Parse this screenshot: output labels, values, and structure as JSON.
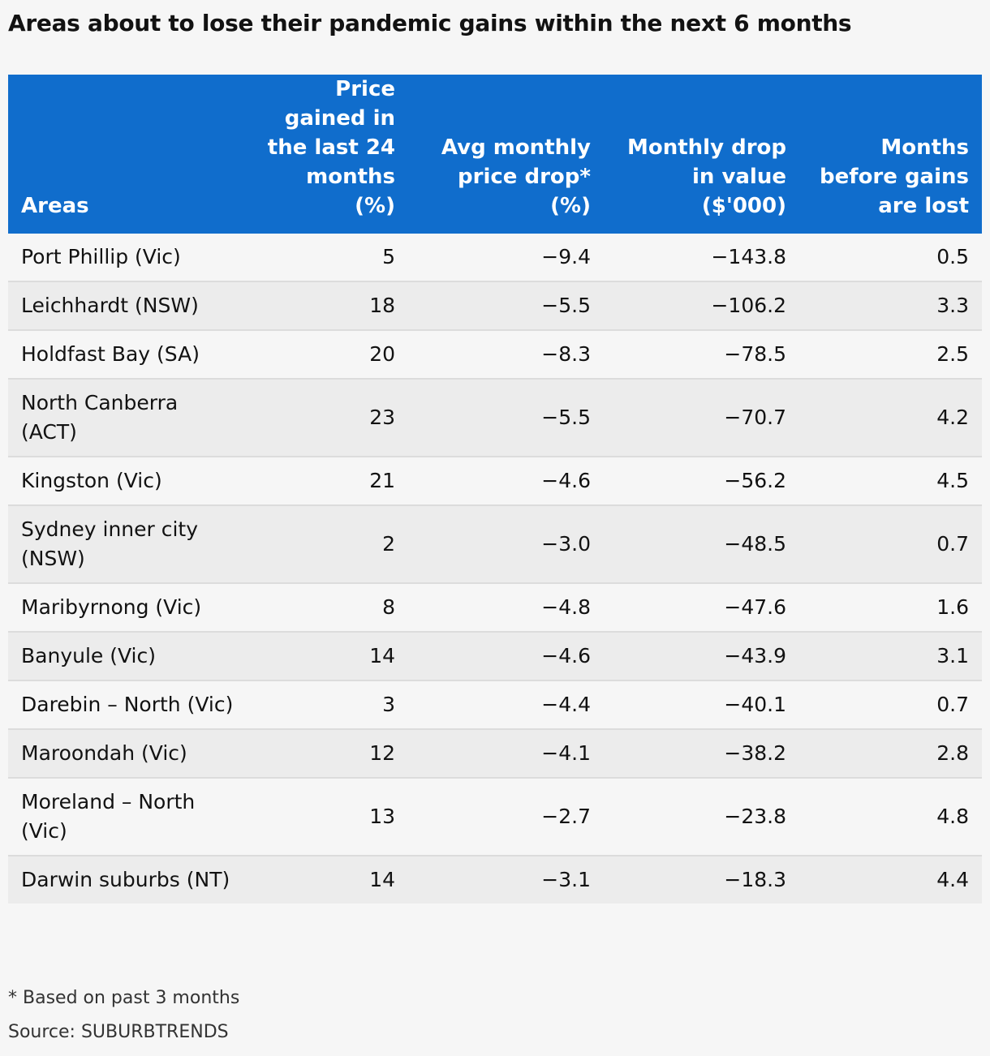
{
  "chart_data": {
    "type": "table",
    "title": "Areas about to lose their pandemic gains within the next 6 months",
    "columns": [
      "Areas",
      "Price gained in the last 24 months (%)",
      "Avg monthly price drop* (%)",
      "Monthly drop in value ($'000)",
      "Months before gains are lost"
    ],
    "rows": [
      [
        "Port Phillip (Vic)",
        "5",
        "−9.4",
        "−143.8",
        "0.5"
      ],
      [
        "Leichhardt (NSW)",
        "18",
        "−5.5",
        "−106.2",
        "3.3"
      ],
      [
        "Holdfast Bay (SA)",
        "20",
        "−8.3",
        "−78.5",
        "2.5"
      ],
      [
        "North Canberra (ACT)",
        "23",
        "−5.5",
        "−70.7",
        "4.2"
      ],
      [
        "Kingston (Vic)",
        "21",
        "−4.6",
        "−56.2",
        "4.5"
      ],
      [
        "Sydney inner city (NSW)",
        "2",
        "−3.0",
        "−48.5",
        "0.7"
      ],
      [
        "Maribyrnong (Vic)",
        "8",
        "−4.8",
        "−47.6",
        "1.6"
      ],
      [
        "Banyule (Vic)",
        "14",
        "−4.6",
        "−43.9",
        "3.1"
      ],
      [
        "Darebin – North (Vic)",
        "3",
        "−4.4",
        "−40.1",
        "0.7"
      ],
      [
        "Maroondah (Vic)",
        "12",
        "−4.1",
        "−38.2",
        "2.8"
      ],
      [
        "Moreland – North (Vic)",
        "13",
        "−2.7",
        "−23.8",
        "4.8"
      ],
      [
        "Darwin suburbs (NT)",
        "14",
        "−3.1",
        "−18.3",
        "4.4"
      ]
    ],
    "footnote": "* Based on past 3 months",
    "source": "Source: SUBURBTRENDS"
  },
  "colors": {
    "header_background": "#106dcc",
    "header_text": "#ffffff",
    "row_odd": "#f6f6f6",
    "row_even": "#ececec",
    "row_divider": "#dcdcdc",
    "page_background": "#f6f6f6"
  }
}
